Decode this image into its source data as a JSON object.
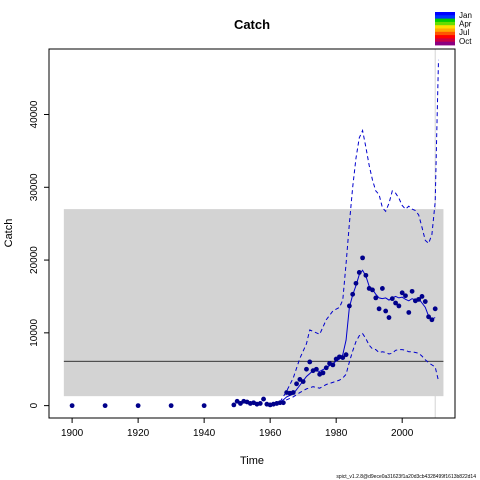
{
  "chart_data": {
    "type": "scatter",
    "title": "Catch",
    "xlabel": "Time",
    "ylabel": "Catch",
    "xlim": [
      1893,
      2016
    ],
    "ylim": [
      -1700,
      49000
    ],
    "x_ticks": [
      1900,
      1920,
      1940,
      1960,
      1980,
      2000
    ],
    "y_ticks": [
      0,
      10000,
      20000,
      30000,
      40000
    ],
    "y_tick_rotation": "vertical",
    "grid": false,
    "legend_position": "top-right",
    "legend": [
      {
        "label": "Jan",
        "color": "#0000ff"
      },
      {
        "label": "Apr",
        "color": "#00cc00"
      },
      {
        "label": "Jul",
        "color": "#ff8c00"
      },
      {
        "label": "Oct",
        "color": "#8b0080"
      }
    ],
    "legend_gradient": [
      "#0000ff",
      "#0033ff",
      "#00cc00",
      "#66dd00",
      "#ffdd00",
      "#ffaa00",
      "#ff5500",
      "#ff0000",
      "#cc0044",
      "#8b0080"
    ],
    "footnote": "spict_v1.2.8@d9ece0a31623f1a20d3cb4328499f1613b822d14",
    "shaded_band": {
      "y_min": 1300,
      "y_max": 27000,
      "x_min": 1897.5,
      "x_max": 2012.5,
      "color": "#d3d3d3"
    },
    "reference_line": {
      "y": 6100,
      "color": "#000000"
    },
    "vertical_line": {
      "x": 2010,
      "color": "#d3d3d3"
    },
    "observations": {
      "name": "Observed catch",
      "color": "#00008b",
      "x": [
        1900,
        1910,
        1920,
        1930,
        1940,
        1949,
        1950,
        1951,
        1952,
        1953,
        1954,
        1955,
        1956,
        1957,
        1958,
        1959,
        1960,
        1961,
        1962,
        1963,
        1964,
        1965,
        1966,
        1967,
        1968,
        1969,
        1970,
        1971,
        1972,
        1973,
        1974,
        1975,
        1976,
        1977,
        1978,
        1979,
        1980,
        1981,
        1982,
        1983,
        1984,
        1985,
        1986,
        1987,
        1988,
        1989,
        1990,
        1991,
        1992,
        1993,
        1994,
        1995,
        1996,
        1997,
        1998,
        1999,
        2000,
        2001,
        2002,
        2003,
        2004,
        2005,
        2006,
        2007,
        2008,
        2009,
        2010
      ],
      "y": [
        0,
        0,
        0,
        0,
        0,
        100,
        600,
        300,
        600,
        500,
        300,
        400,
        200,
        300,
        900,
        200,
        100,
        200,
        300,
        400,
        400,
        1800,
        1700,
        1800,
        3000,
        3600,
        3300,
        5000,
        6000,
        4800,
        5000,
        4300,
        4500,
        5200,
        5800,
        5600,
        6400,
        6700,
        6600,
        7000,
        13700,
        15300,
        16800,
        18300,
        20300,
        17900,
        16100,
        15900,
        14800,
        13300,
        16100,
        13000,
        12100,
        14700,
        14100,
        13700,
        15500,
        15100,
        12800,
        15700,
        14400,
        14600,
        15000,
        14300,
        12200,
        11800,
        13300
      ]
    },
    "series": [
      {
        "style": "solid",
        "color": "#0000cd",
        "x": [
          1963,
          1965,
          1967,
          1969,
          1971,
          1973,
          1975,
          1977,
          1979,
          1981,
          1982,
          1983,
          1984,
          1985,
          1986,
          1987,
          1988,
          1989,
          1990,
          1991,
          1992,
          1993,
          1994,
          1995,
          1996,
          1997,
          1998,
          1999,
          2000,
          2001,
          2002,
          2003,
          2004,
          2005,
          2006,
          2007,
          2008,
          2009,
          2010
        ],
        "y": [
          400,
          1200,
          1600,
          2800,
          4000,
          4800,
          4700,
          5200,
          5800,
          6400,
          7000,
          9000,
          13500,
          15200,
          16500,
          18000,
          18600,
          17800,
          16400,
          16000,
          15300,
          14800,
          14700,
          14800,
          14500,
          14800,
          15000,
          14800,
          14900,
          14600,
          14400,
          14700,
          14500,
          14700,
          14100,
          13500,
          12300,
          11900,
          12100
        ]
      },
      {
        "style": "dashed",
        "color": "#0000cd",
        "x": [
          1963,
          1965,
          1967,
          1969,
          1971,
          1972,
          1973,
          1975,
          1977,
          1979,
          1981,
          1982,
          1983,
          1984,
          1985,
          1986,
          1987,
          1988,
          1989,
          1990,
          1991,
          1992,
          1993,
          1994,
          1995,
          1996,
          1997,
          1998,
          1999,
          2000,
          2001,
          2002,
          2003,
          2004,
          2005,
          2006,
          2007,
          2008,
          2009,
          2010,
          2010.5,
          2011
        ],
        "y": [
          500,
          2000,
          3800,
          6500,
          8500,
          10400,
          10200,
          9800,
          11800,
          13000,
          13500,
          14500,
          19500,
          25000,
          30000,
          34000,
          36800,
          37800,
          35500,
          33000,
          31000,
          29500,
          29000,
          27200,
          26700,
          27800,
          29500,
          29200,
          28500,
          27500,
          27000,
          27400,
          27000,
          26800,
          26200,
          24500,
          22700,
          22300,
          23500,
          28000,
          38000,
          47500
        ]
      },
      {
        "style": "dashed",
        "color": "#0000cd",
        "x": [
          1963,
          1965,
          1967,
          1969,
          1971,
          1973,
          1975,
          1977,
          1979,
          1981,
          1982,
          1983,
          1984,
          1985,
          1986,
          1987,
          1988,
          1989,
          1990,
          1991,
          1992,
          1993,
          1994,
          1995,
          1996,
          1997,
          1998,
          1999,
          2000,
          2001,
          2002,
          2003,
          2004,
          2005,
          2006,
          2007,
          2008,
          2009,
          2010,
          2011
        ],
        "y": [
          300,
          800,
          1200,
          1800,
          2300,
          2600,
          2400,
          2900,
          3200,
          3500,
          3800,
          4300,
          6000,
          7500,
          8800,
          9600,
          9900,
          9200,
          8300,
          7800,
          7700,
          7300,
          7400,
          7300,
          7100,
          7200,
          7600,
          7700,
          7700,
          7600,
          7400,
          7400,
          7300,
          7200,
          6800,
          6300,
          5900,
          5600,
          5300,
          3400
        ]
      }
    ]
  }
}
